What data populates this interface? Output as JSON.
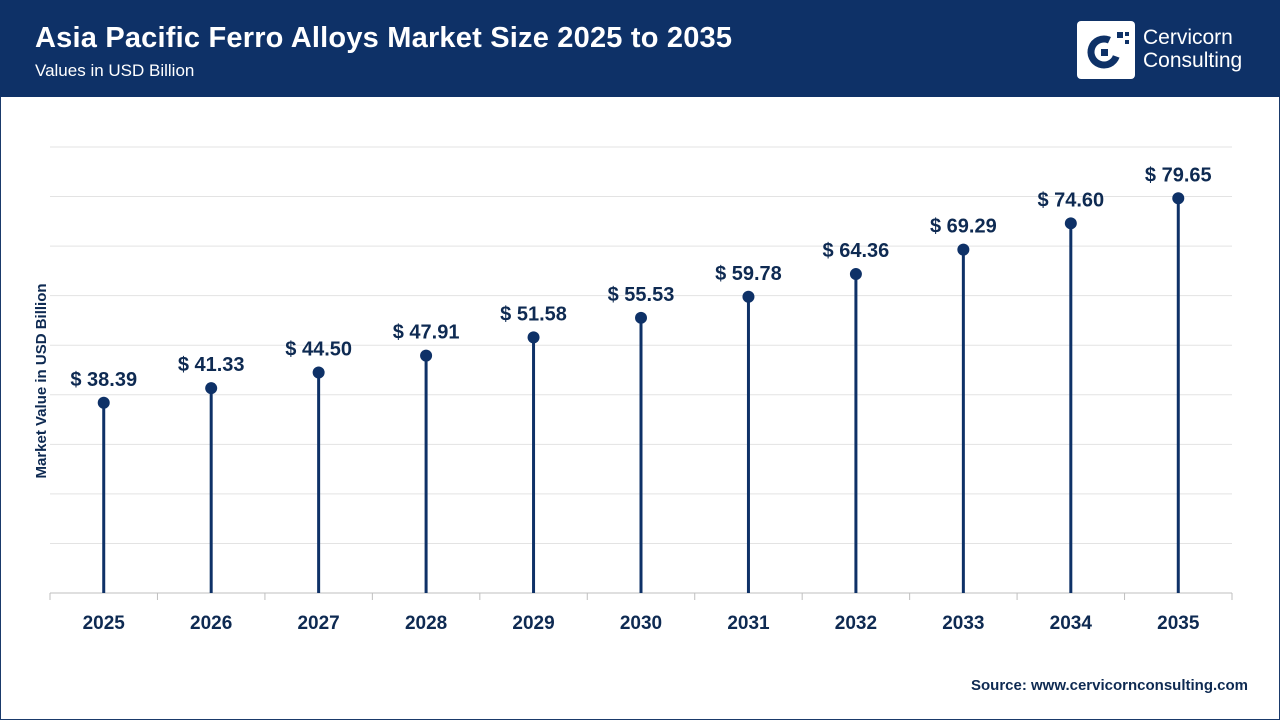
{
  "header": {
    "title": "Asia Pacific Ferro Alloys Market Size 2025 to 2035",
    "subtitle": "Values in USD Billion"
  },
  "logo": {
    "line1": "Cervicorn",
    "line2": "Consulting",
    "icon": "cervicorn-c-logo-icon"
  },
  "footer": {
    "source": "Source: www.cervicornconsulting.com"
  },
  "colors": {
    "header_bg": "#0e3167",
    "series": "#0e3167",
    "grid": "#e3e3e3",
    "text": "#0e2a52"
  },
  "chart_data": {
    "type": "lollipop",
    "title": "Asia Pacific Ferro Alloys Market Size 2025 to 2035",
    "subtitle": "Values in USD Billion",
    "ylabel": "Market Value in USD Billion",
    "xlabel": "",
    "value_prefix": "$ ",
    "categories": [
      "2025",
      "2026",
      "2027",
      "2028",
      "2029",
      "2030",
      "2031",
      "2032",
      "2033",
      "2034",
      "2035"
    ],
    "values": [
      38.39,
      41.33,
      44.5,
      47.91,
      51.58,
      55.53,
      59.78,
      64.36,
      69.29,
      74.6,
      79.65
    ],
    "value_labels": [
      "$ 38.39",
      "$ 41.33",
      "$ 44.50",
      "$ 47.91",
      "$ 51.58",
      "$ 55.53",
      "$ 59.78",
      "$ 64.36",
      "$ 69.29",
      "$ 74.60",
      "$ 79.65"
    ],
    "ylim": [
      0,
      90
    ],
    "grid": true,
    "legend": "none"
  }
}
